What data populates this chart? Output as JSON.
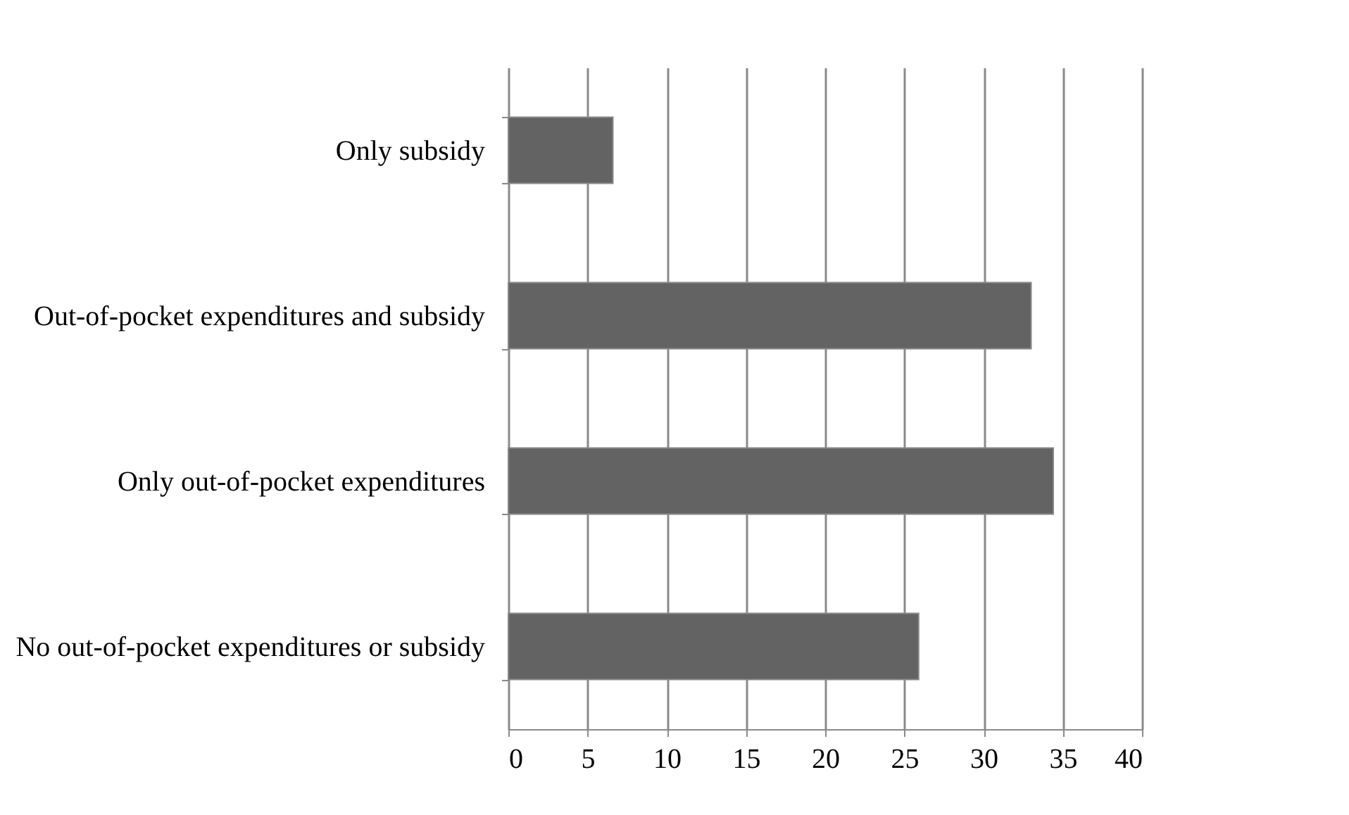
{
  "chart_data": {
    "type": "bar",
    "orientation": "horizontal",
    "categories": [
      "Only subsidy",
      "Out-of-pocket expenditures and subsidy",
      "Only out-of-pocket expenditures",
      "No out-of-pocket expenditures or subsidy"
    ],
    "values": [
      6.6,
      33.0,
      34.4,
      25.9
    ],
    "color": "#636363",
    "xlim": [
      0,
      40
    ],
    "xticks": [
      0,
      5,
      10,
      15,
      20,
      25,
      30,
      35,
      40
    ],
    "grid": "x"
  }
}
